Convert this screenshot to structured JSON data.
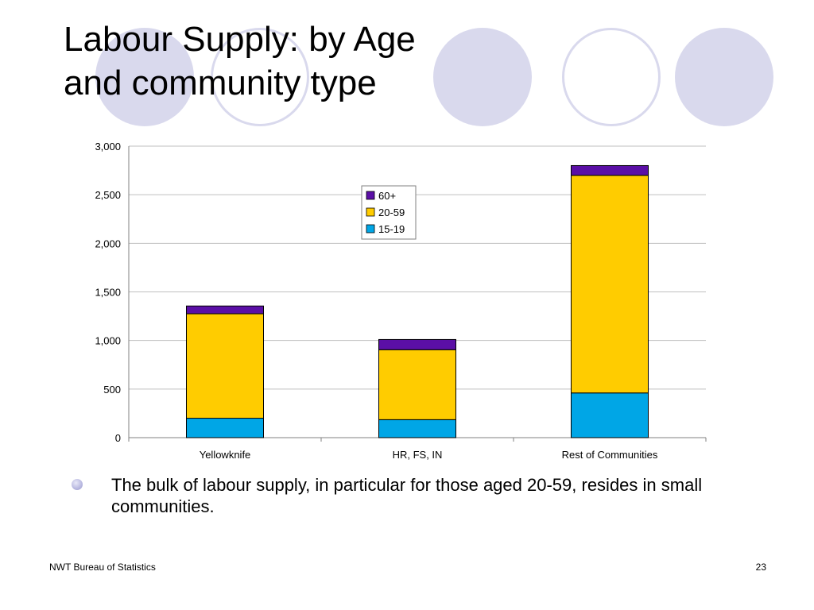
{
  "slide": {
    "title_lines": [
      "Labour Supply: by Age",
      "and community type"
    ],
    "bullet": "The bulk of labour supply, in particular for those aged 20-59, resides in small communities.",
    "footer_left": "NWT Bureau of Statistics",
    "page_number": "23"
  },
  "colors": {
    "accent_circle": "#d9d9ed",
    "series_15_19": "#00a6e6",
    "series_20_59": "#ffcc00",
    "series_60_plus": "#5b0fa6"
  },
  "chart_data": {
    "type": "bar",
    "stacked": true,
    "categories": [
      "Yellowknife",
      "HR, FS, IN",
      "Rest of Communities"
    ],
    "series": [
      {
        "name": "15-19",
        "color": "#00a6e6",
        "values": [
          200,
          185,
          460
        ]
      },
      {
        "name": "20-59",
        "color": "#ffcc00",
        "values": [
          1075,
          720,
          2240
        ]
      },
      {
        "name": "60+",
        "color": "#5b0fa6",
        "values": [
          80,
          105,
          100
        ]
      }
    ],
    "ylim": [
      0,
      3000
    ],
    "yticks": [
      0,
      500,
      1000,
      1500,
      2000,
      2500,
      3000
    ],
    "ytick_labels": [
      "0",
      "500",
      "1,000",
      "1,500",
      "2,000",
      "2,500",
      "3,000"
    ],
    "legend_order": [
      "60+",
      "20-59",
      "15-19"
    ],
    "legend_position": "top-center",
    "grid": true
  }
}
